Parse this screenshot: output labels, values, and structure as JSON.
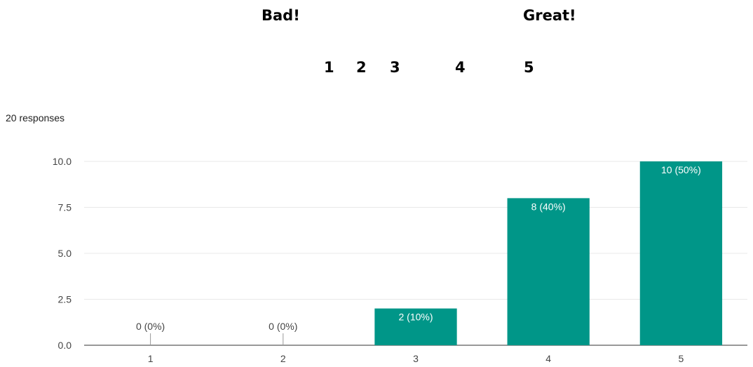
{
  "scale": {
    "low_label": "Bad!",
    "high_label": "Great!",
    "numbers": [
      "1",
      "2",
      "3",
      "4",
      "5"
    ]
  },
  "responses_text": "20 responses",
  "colors": {
    "bar": "#009688",
    "grid": "#e9e9e9",
    "axis": "#333333",
    "label_inside": "#ffffff",
    "label_outside": "#444444"
  },
  "chart_data": {
    "type": "bar",
    "categories": [
      "1",
      "2",
      "3",
      "4",
      "5"
    ],
    "values": [
      0,
      0,
      2,
      8,
      10
    ],
    "data_labels": [
      "0 (0%)",
      "0 (0%)",
      "2 (10%)",
      "8 (40%)",
      "10 (50%)"
    ],
    "y_ticks": [
      "0.0",
      "2.5",
      "5.0",
      "7.5",
      "10.0"
    ],
    "ylim": [
      0,
      10
    ],
    "grid": true,
    "title": "",
    "xlabel": "",
    "ylabel": ""
  }
}
